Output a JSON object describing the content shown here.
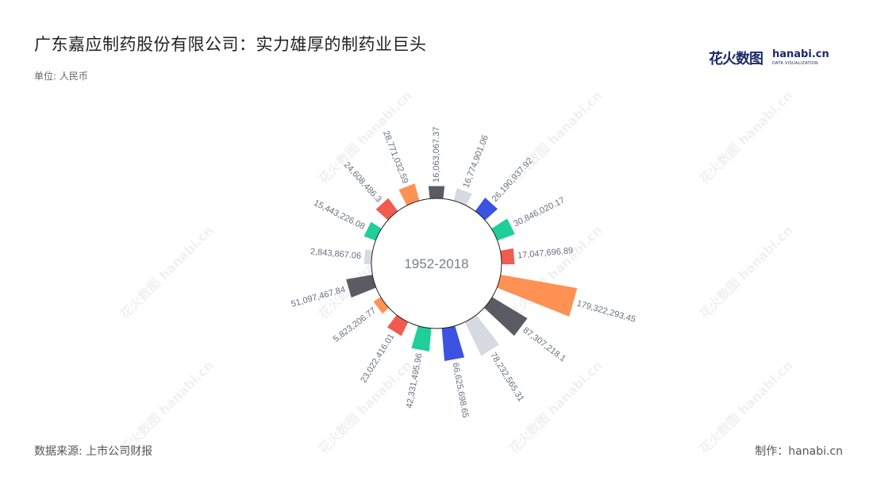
{
  "title": "广东嘉应制药股份有限公司：实力雄厚的制药业巨头",
  "unit_label": "单位: 人民币",
  "logo": {
    "cn": "花火数图",
    "en": "hanabi.cn",
    "sub": "DATA VISUALIZATION"
  },
  "watermark_text": "花火数图 hanabi.cn",
  "source": "数据来源: 上市公司财报",
  "maker": "制作：hanabi.cn",
  "center_label": "1952-2018",
  "colors": {
    "orange": "#ff9155",
    "dark": "#5b5c63",
    "light": "#d5dae3",
    "blue": "#3c52e0",
    "green": "#1ecf99",
    "red": "#f15b50"
  },
  "chart_data": {
    "type": "radial-bar",
    "series": [
      {
        "value": 16063067.37,
        "label": "16,063,067.37",
        "color": "dark"
      },
      {
        "value": 16774901.06,
        "label": "16,774,901.06",
        "color": "light"
      },
      {
        "value": 26190937.92,
        "label": "26,190,937.92",
        "color": "blue"
      },
      {
        "value": 30846020.17,
        "label": "30,846,020.17",
        "color": "green"
      },
      {
        "value": 17047696.89,
        "label": "17,047,696.89",
        "color": "red"
      },
      {
        "value": 179322293.45,
        "label": "179,322,293.45",
        "color": "orange"
      },
      {
        "value": 87307218.1,
        "label": "87,307,218.1",
        "color": "dark"
      },
      {
        "value": 78232565.31,
        "label": "78,232,565.31",
        "color": "light"
      },
      {
        "value": 66625698.65,
        "label": "66,625,698.65",
        "color": "blue"
      },
      {
        "value": 42331495.96,
        "label": "42,331,495.96",
        "color": "green"
      },
      {
        "value": 23022416.01,
        "label": "23,022,416.01",
        "color": "red"
      },
      {
        "value": 5823206.77,
        "label": "5,823,206.77",
        "color": "orange"
      },
      {
        "value": 51097467.84,
        "label": "51,097,467.84",
        "color": "dark"
      },
      {
        "value": 2843867.06,
        "label": "2,843,867.06",
        "color": "light"
      },
      {
        "value": 15443226.08,
        "label": "15,443,226.08",
        "color": "green"
      },
      {
        "value": 24608486.3,
        "label": "24,608,486.3",
        "color": "red"
      },
      {
        "value": 28771032.59,
        "label": "28,771,032.59",
        "color": "orange"
      }
    ]
  }
}
